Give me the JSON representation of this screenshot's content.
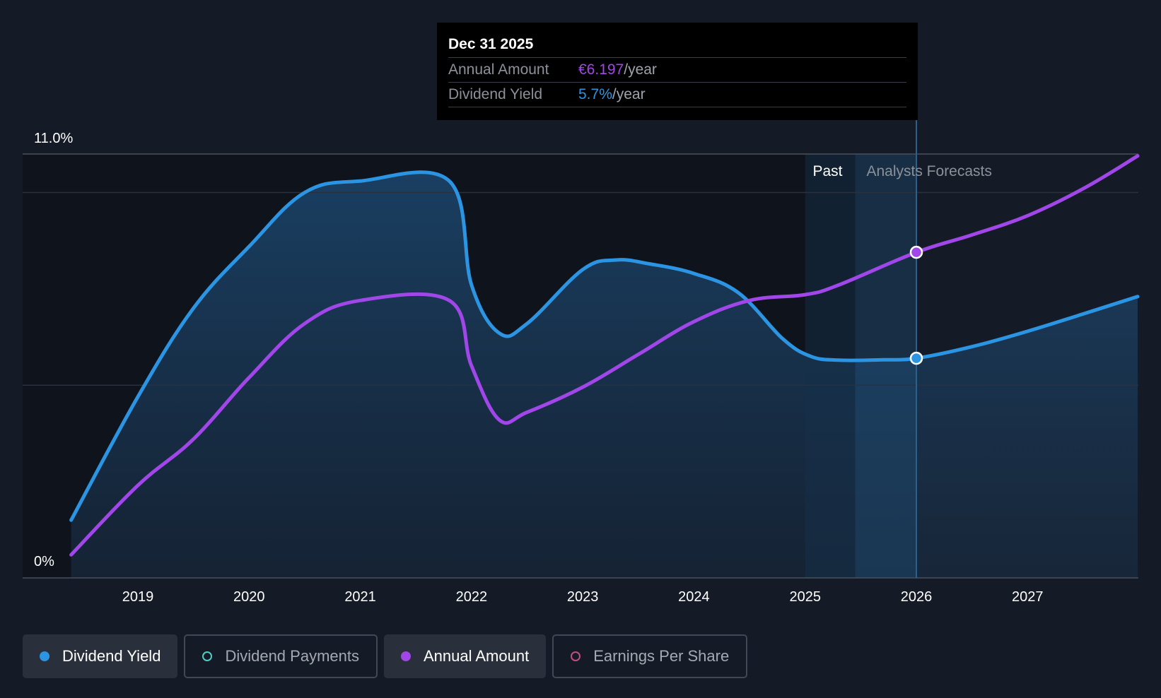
{
  "chart_data": {
    "type": "line",
    "y_top_label": "11.0%",
    "y_bottom_label": "0%",
    "x_ticks": [
      "2019",
      "2020",
      "2021",
      "2022",
      "2023",
      "2024",
      "2025",
      "2026",
      "2027"
    ],
    "regions": {
      "past_label": "Past",
      "forecast_label": "Analysts Forecasts"
    },
    "series": [
      {
        "name": "Dividend Yield",
        "color": "#2b95e3",
        "points": [
          [
            2018.4,
            1.5
          ],
          [
            2019.0,
            4.7
          ],
          [
            2019.5,
            7.0
          ],
          [
            2020.0,
            8.6
          ],
          [
            2020.5,
            10.0
          ],
          [
            2021.0,
            10.3
          ],
          [
            2021.8,
            10.3
          ],
          [
            2022.0,
            7.6
          ],
          [
            2022.25,
            6.35
          ],
          [
            2022.5,
            6.6
          ],
          [
            2023.0,
            8.0
          ],
          [
            2023.3,
            8.25
          ],
          [
            2023.6,
            8.15
          ],
          [
            2024.0,
            7.9
          ],
          [
            2024.4,
            7.4
          ],
          [
            2024.8,
            6.2
          ],
          [
            2025.05,
            5.75
          ],
          [
            2025.3,
            5.65
          ],
          [
            2025.7,
            5.66
          ],
          [
            2026.0,
            5.7
          ],
          [
            2026.5,
            6.0
          ],
          [
            2027.0,
            6.4
          ],
          [
            2027.5,
            6.85
          ],
          [
            2027.99,
            7.3
          ]
        ]
      },
      {
        "name": "Annual Amount",
        "color": "#a146e8",
        "points": [
          [
            2018.4,
            0.6
          ],
          [
            2019.0,
            2.4
          ],
          [
            2019.5,
            3.6
          ],
          [
            2020.0,
            5.2
          ],
          [
            2020.5,
            6.6
          ],
          [
            2021.0,
            7.2
          ],
          [
            2021.8,
            7.2
          ],
          [
            2022.0,
            5.5
          ],
          [
            2022.25,
            4.1
          ],
          [
            2022.5,
            4.3
          ],
          [
            2023.0,
            4.95
          ],
          [
            2023.5,
            5.8
          ],
          [
            2024.0,
            6.65
          ],
          [
            2024.5,
            7.2
          ],
          [
            2025.0,
            7.35
          ],
          [
            2025.3,
            7.6
          ],
          [
            2026.0,
            8.45
          ],
          [
            2026.5,
            8.9
          ],
          [
            2027.0,
            9.4
          ],
          [
            2027.5,
            10.1
          ],
          [
            2027.99,
            10.95
          ]
        ]
      }
    ],
    "ylim": [
      0,
      11.0
    ],
    "xlim": [
      2018.0,
      2027.99
    ],
    "hover": {
      "x": 2026.0,
      "date": "Dec 31 2025",
      "rows": [
        {
          "label": "Annual Amount",
          "value": "€6.197",
          "unit": "/year",
          "color": "#a146e8"
        },
        {
          "label": "Dividend Yield",
          "value": "5.7%",
          "unit": "/year",
          "color": "#2b95e3"
        }
      ]
    },
    "legend": [
      {
        "label": "Dividend Yield",
        "color": "#2b95e3",
        "filled": true,
        "active": true
      },
      {
        "label": "Dividend Payments",
        "color": "#4ecdc4",
        "filled": false,
        "active": false
      },
      {
        "label": "Annual Amount",
        "color": "#a146e8",
        "filled": true,
        "active": true
      },
      {
        "label": "Earnings Per Share",
        "color": "#c0507d",
        "filled": false,
        "active": false
      }
    ]
  }
}
